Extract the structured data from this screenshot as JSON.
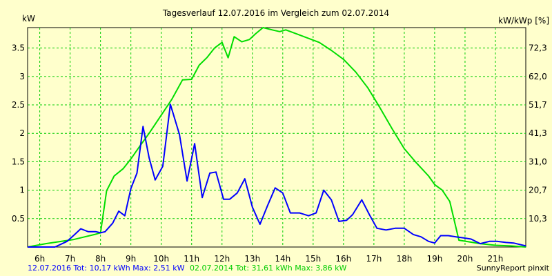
{
  "chart_data": {
    "type": "line",
    "title": "Tagesverlauf 12.07.2016 im Vergleich zum 02.07.2014",
    "y_left_label": "kW",
    "y_right_label": "kW/kWp [%]",
    "ylim": [
      0,
      3.86
    ],
    "xlim": [
      5.6,
      22.0
    ],
    "grid": true,
    "x_ticks": [
      {
        "value": 6,
        "label": "6h"
      },
      {
        "value": 7,
        "label": "7h"
      },
      {
        "value": 8,
        "label": "8h"
      },
      {
        "value": 9,
        "label": "9h"
      },
      {
        "value": 10,
        "label": "10h"
      },
      {
        "value": 11,
        "label": "11h"
      },
      {
        "value": 12,
        "label": "12h"
      },
      {
        "value": 13,
        "label": "13h"
      },
      {
        "value": 14,
        "label": "14h"
      },
      {
        "value": 15,
        "label": "15h"
      },
      {
        "value": 16,
        "label": "16h"
      },
      {
        "value": 17,
        "label": "17h"
      },
      {
        "value": 18,
        "label": "18h"
      },
      {
        "value": 19,
        "label": "19h"
      },
      {
        "value": 20,
        "label": "20h"
      },
      {
        "value": 21,
        "label": "21h"
      }
    ],
    "y_left_ticks": [
      {
        "value": 0.5,
        "label": "0.5"
      },
      {
        "value": 1,
        "label": "1"
      },
      {
        "value": 1.5,
        "label": "1.5"
      },
      {
        "value": 2,
        "label": "2"
      },
      {
        "value": 2.5,
        "label": "2.5"
      },
      {
        "value": 3,
        "label": "3"
      },
      {
        "value": 3.5,
        "label": "3.5"
      }
    ],
    "y_right_ticks": [
      {
        "value": 0.5,
        "label": "10,3"
      },
      {
        "value": 1,
        "label": "20,7"
      },
      {
        "value": 1.5,
        "label": "31,0"
      },
      {
        "value": 2,
        "label": "41,3"
      },
      {
        "value": 2.5,
        "label": "51,7"
      },
      {
        "value": 3,
        "label": "62,0"
      },
      {
        "value": 3.5,
        "label": "72,3"
      }
    ],
    "series": [
      {
        "name": "12.07.2016",
        "color": "#0000ff",
        "x": [
          5.6,
          6.5,
          6.9,
          7.15,
          7.35,
          7.6,
          7.85,
          8.0,
          8.15,
          8.4,
          8.6,
          8.8,
          9.0,
          9.2,
          9.4,
          9.6,
          9.8,
          10.05,
          10.3,
          10.6,
          10.85,
          11.1,
          11.35,
          11.6,
          11.8,
          12.05,
          12.25,
          12.5,
          12.75,
          13.0,
          13.25,
          13.5,
          13.75,
          14.0,
          14.25,
          14.55,
          14.85,
          15.1,
          15.35,
          15.6,
          15.85,
          16.1,
          16.3,
          16.6,
          16.85,
          17.1,
          17.4,
          17.7,
          18.0,
          18.3,
          18.55,
          18.8,
          19.0,
          19.2,
          19.45,
          19.7,
          19.95,
          20.2,
          20.5,
          20.8,
          21.05,
          21.35,
          21.6,
          22.0
        ],
        "y": [
          0.0,
          0.0,
          0.1,
          0.22,
          0.32,
          0.27,
          0.27,
          0.25,
          0.27,
          0.42,
          0.63,
          0.55,
          1.03,
          1.3,
          2.12,
          1.57,
          1.18,
          1.42,
          2.51,
          1.98,
          1.16,
          1.82,
          0.87,
          1.3,
          1.32,
          0.84,
          0.84,
          0.95,
          1.2,
          0.7,
          0.4,
          0.73,
          1.04,
          0.95,
          0.6,
          0.6,
          0.55,
          0.6,
          1.0,
          0.83,
          0.45,
          0.47,
          0.57,
          0.83,
          0.57,
          0.33,
          0.3,
          0.33,
          0.33,
          0.22,
          0.18,
          0.1,
          0.07,
          0.2,
          0.2,
          0.18,
          0.16,
          0.14,
          0.06,
          0.1,
          0.1,
          0.08,
          0.07,
          0.02
        ]
      },
      {
        "name": "02.07.2014",
        "color": "#00dd00",
        "x": [
          5.6,
          6.2,
          7.1,
          7.8,
          8.0,
          8.2,
          8.45,
          8.75,
          9.0,
          9.3,
          9.6,
          9.95,
          10.35,
          10.7,
          11.0,
          11.25,
          11.5,
          11.75,
          12.0,
          12.2,
          12.4,
          12.65,
          12.9,
          13.1,
          13.35,
          13.65,
          13.9,
          14.1,
          14.4,
          14.8,
          15.2,
          15.6,
          16.0,
          16.4,
          16.8,
          17.2,
          17.6,
          18.0,
          18.4,
          18.8,
          19.0,
          19.25,
          19.5,
          19.8,
          20.5,
          21.0,
          21.5,
          22.0
        ],
        "y": [
          0.0,
          0.06,
          0.13,
          0.22,
          0.25,
          0.99,
          1.25,
          1.38,
          1.55,
          1.78,
          2.0,
          2.28,
          2.6,
          2.94,
          2.95,
          3.2,
          3.33,
          3.5,
          3.6,
          3.33,
          3.7,
          3.61,
          3.65,
          3.75,
          3.86,
          3.82,
          3.79,
          3.82,
          3.76,
          3.68,
          3.6,
          3.46,
          3.3,
          3.08,
          2.8,
          2.45,
          2.08,
          1.73,
          1.48,
          1.25,
          1.1,
          1.0,
          0.8,
          0.12,
          0.06,
          0.03,
          0.02,
          0.0
        ]
      }
    ]
  },
  "footer": {
    "series1_text": "12.07.2016 Tot: 10,17 kWh Max: 2,51 kW",
    "series2_text": "02.07.2014 Tot: 31,61 kWh Max: 3,86 kW",
    "credit": "SunnyReport pinxit"
  }
}
